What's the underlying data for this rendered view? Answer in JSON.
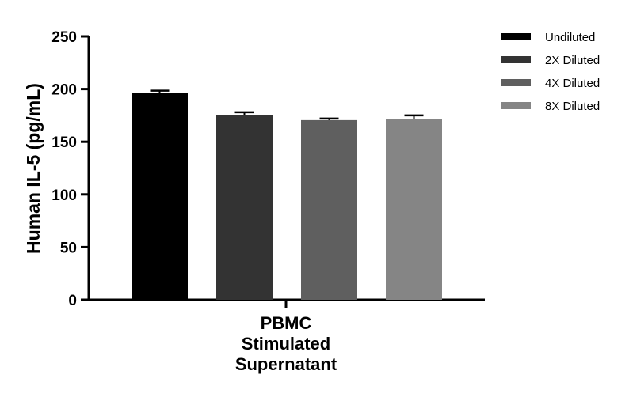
{
  "chart_data": {
    "type": "bar",
    "title": "",
    "ylabel": "Human IL-5 (pg/mL)",
    "ylim": [
      0,
      250
    ],
    "yticks": [
      0,
      50,
      100,
      150,
      200,
      250
    ],
    "category_lines": [
      "PBMC",
      "Stimulated",
      "Supernatant"
    ],
    "legend_position": "top-right",
    "grid": false,
    "series": [
      {
        "name": "Undiluted",
        "value": 196,
        "error": 2.5,
        "color": "#000000"
      },
      {
        "name": "2X Diluted",
        "value": 175.5,
        "error": 2.5,
        "color": "#333333"
      },
      {
        "name": "4X Diluted",
        "value": 170.5,
        "error": 1.5,
        "color": "#5f5f5f"
      },
      {
        "name": "8X Diluted",
        "value": 171.5,
        "error": 3.5,
        "color": "#858585"
      }
    ]
  }
}
